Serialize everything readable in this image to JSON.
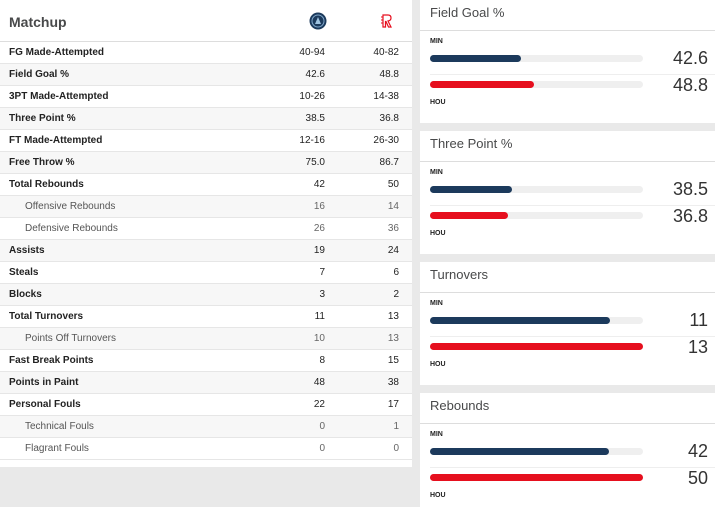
{
  "matchup": {
    "title": "Matchup",
    "teams": [
      {
        "abbr": "MIN",
        "logo_icon": "timberwolves-logo-icon",
        "color": "#1c3a5c"
      },
      {
        "abbr": "HOU",
        "logo_icon": "rockets-logo-icon",
        "color": "#e60f1e"
      }
    ],
    "rows": [
      {
        "label": "FG Made-Attempted",
        "min": "40-94",
        "hou": "40-82",
        "sub": false
      },
      {
        "label": "Field Goal %",
        "min": "42.6",
        "hou": "48.8",
        "sub": false
      },
      {
        "label": "3PT Made-Attempted",
        "min": "10-26",
        "hou": "14-38",
        "sub": false
      },
      {
        "label": "Three Point %",
        "min": "38.5",
        "hou": "36.8",
        "sub": false
      },
      {
        "label": "FT Made-Attempted",
        "min": "12-16",
        "hou": "26-30",
        "sub": false
      },
      {
        "label": "Free Throw %",
        "min": "75.0",
        "hou": "86.7",
        "sub": false
      },
      {
        "label": "Total Rebounds",
        "min": "42",
        "hou": "50",
        "sub": false
      },
      {
        "label": "Offensive Rebounds",
        "min": "16",
        "hou": "14",
        "sub": true
      },
      {
        "label": "Defensive Rebounds",
        "min": "26",
        "hou": "36",
        "sub": true
      },
      {
        "label": "Assists",
        "min": "19",
        "hou": "24",
        "sub": false
      },
      {
        "label": "Steals",
        "min": "7",
        "hou": "6",
        "sub": false
      },
      {
        "label": "Blocks",
        "min": "3",
        "hou": "2",
        "sub": false
      },
      {
        "label": "Total Turnovers",
        "min": "11",
        "hou": "13",
        "sub": false
      },
      {
        "label": "Points Off Turnovers",
        "min": "10",
        "hou": "13",
        "sub": true
      },
      {
        "label": "Fast Break Points",
        "min": "8",
        "hou": "15",
        "sub": false
      },
      {
        "label": "Points in Paint",
        "min": "48",
        "hou": "38",
        "sub": false
      },
      {
        "label": "Personal Fouls",
        "min": "22",
        "hou": "17",
        "sub": false
      },
      {
        "label": "Technical Fouls",
        "min": "0",
        "hou": "1",
        "sub": true
      },
      {
        "label": "Flagrant Fouls",
        "min": "0",
        "hou": "0",
        "sub": true
      }
    ]
  },
  "cards": [
    {
      "title": "Field Goal %",
      "min_label": "MIN",
      "hou_label": "HOU",
      "min": "42.6",
      "hou": "48.8",
      "min_fill": 0.426,
      "hou_fill": 0.488
    },
    {
      "title": "Three Point %",
      "min_label": "MIN",
      "hou_label": "HOU",
      "min": "38.5",
      "hou": "36.8",
      "min_fill": 0.385,
      "hou_fill": 0.368
    },
    {
      "title": "Turnovers",
      "min_label": "MIN",
      "hou_label": "HOU",
      "min": "11",
      "hou": "13",
      "min_fill": 0.846,
      "hou_fill": 1.0
    },
    {
      "title": "Rebounds",
      "min_label": "MIN",
      "hou_label": "HOU",
      "min": "42",
      "hou": "50",
      "min_fill": 0.84,
      "hou_fill": 1.0
    }
  ]
}
